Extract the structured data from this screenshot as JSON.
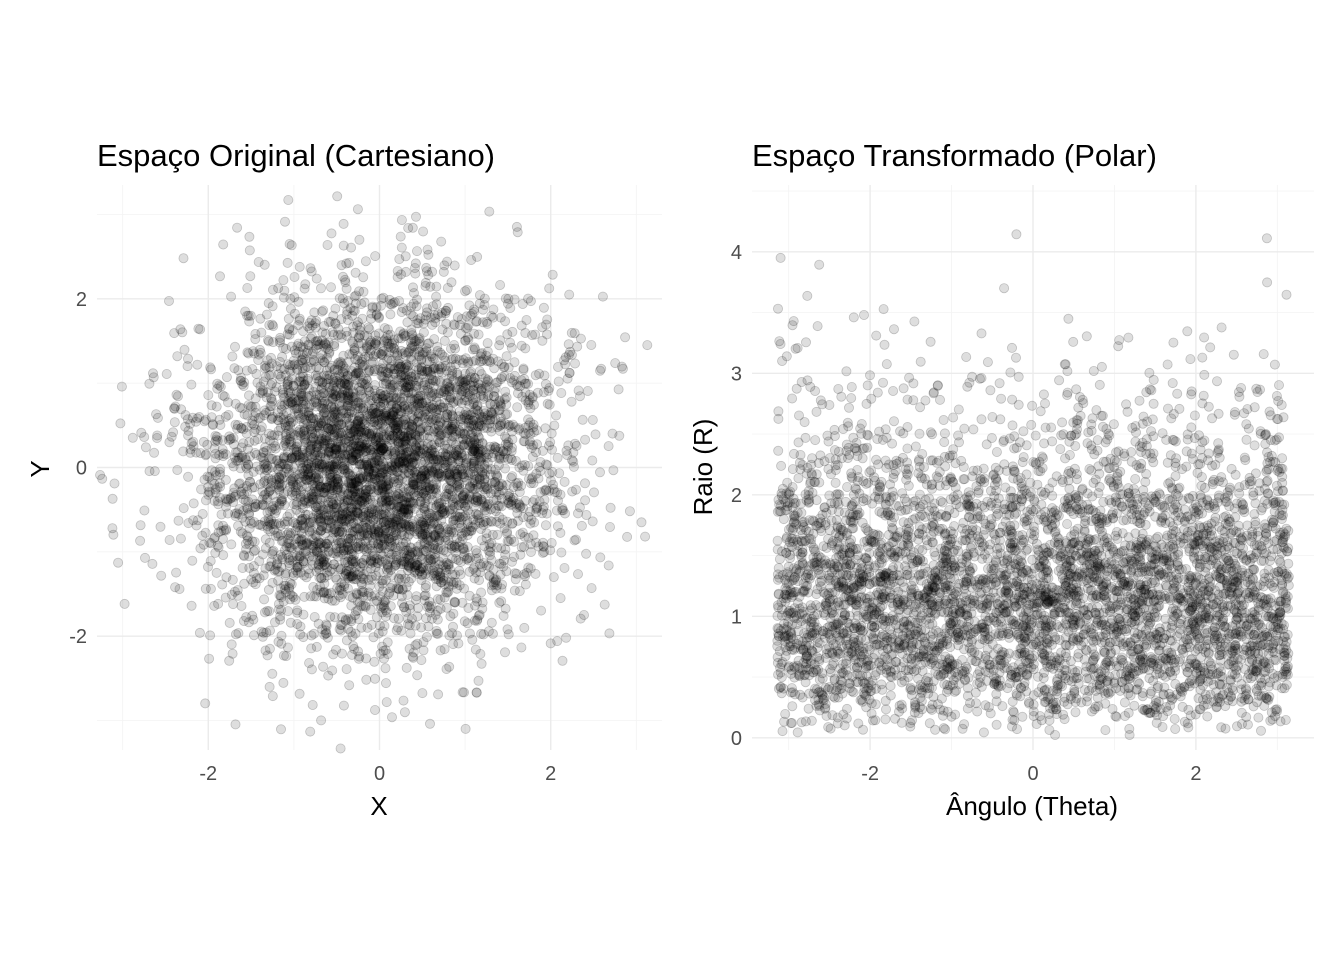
{
  "chart_data": [
    {
      "type": "scatter",
      "title": "Espaço Original (Cartesiano)",
      "xlabel": "X",
      "ylabel": "Y",
      "xlim": [
        -3.3,
        3.3
      ],
      "ylim": [
        -3.35,
        3.35
      ],
      "xticks": [
        -2,
        0,
        2
      ],
      "yticks": [
        -2,
        0,
        2
      ],
      "xtick_labels": [
        "-2",
        "0",
        "2"
      ],
      "ytick_labels": [
        "-2",
        "0",
        "2"
      ],
      "grid": true,
      "series": [
        {
          "distribution": "bivariate standard normal",
          "n": 5000,
          "mean": [
            0,
            0
          ],
          "sd": [
            1,
            1
          ],
          "alpha": 0.13,
          "color": "#000000"
        }
      ]
    },
    {
      "type": "scatter",
      "title": "Espaço Transformado (Polar)",
      "xlabel": "Ângulo (Theta)",
      "ylabel": "Raio (R)",
      "xlim": [
        -3.45,
        3.45
      ],
      "ylim": [
        -0.1,
        4.55
      ],
      "xticks": [
        -2,
        0,
        2
      ],
      "yticks": [
        0,
        1,
        2,
        3,
        4
      ],
      "xtick_labels": [
        "-2",
        "0",
        "2"
      ],
      "ytick_labels": [
        "0",
        "1",
        "2",
        "3",
        "4"
      ],
      "grid": true,
      "series": [
        {
          "distribution": "theta uniform on [-3.14159, 3.14159], R Rayleigh(sigma=1)",
          "n": 5000,
          "alpha": 0.13,
          "color": "#000000"
        }
      ]
    }
  ]
}
